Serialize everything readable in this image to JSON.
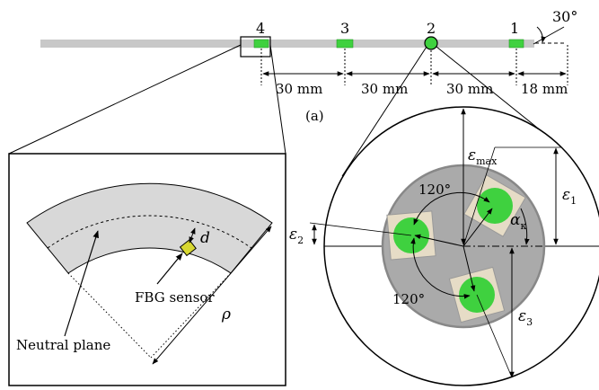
{
  "figure": {
    "panel_label": "(a)",
    "sensor_numbers": [
      "4",
      "3",
      "2",
      "1"
    ],
    "bend_angle": "30°",
    "spacings": [
      "30 mm",
      "30 mm",
      "30 mm",
      "18 mm"
    ],
    "colors": {
      "rod": "#c8c8c8",
      "sensor": "#3fd13f",
      "core": "#aaaaaa",
      "patch": "#e6dcc6",
      "curved_body": "#d8d8d8",
      "fbg_sensor": "#d8d832"
    }
  },
  "bend_panel": {
    "d_label": "d",
    "fbg_label": "FBG sensor",
    "rho_label": "ρ",
    "neutral_label": "Neutral plane"
  },
  "cross_section": {
    "eps_symbol": "ε",
    "eps_max_sub": "max",
    "eps1_sub": "1",
    "eps2_sub": "2",
    "eps3_sub": "3",
    "alpha_symbol": "α",
    "alpha_sub": "κ",
    "angle_upper": "120°",
    "angle_lower": "120°"
  }
}
